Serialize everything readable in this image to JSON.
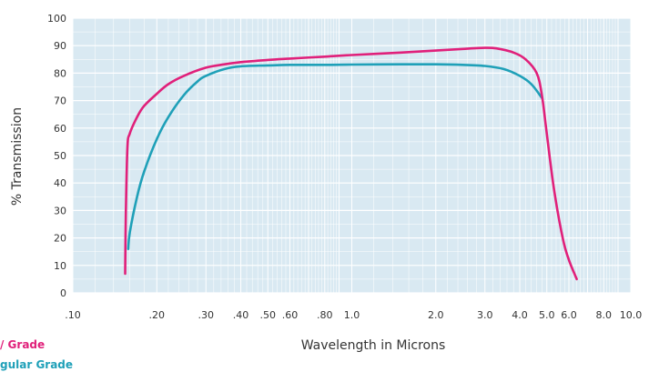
{
  "chart_data": {
    "type": "line",
    "title": "",
    "xlabel": "Wavelength in Microns",
    "ylabel": "% Transmission",
    "x_scale": "log",
    "xlim": [
      0.1,
      10.0
    ],
    "ylim": [
      0,
      100
    ],
    "grid": true,
    "plot_background": "#d9e9f2",
    "x_ticks": [
      {
        "value": 0.1,
        "label": ".10"
      },
      {
        "value": 0.2,
        "label": ".20"
      },
      {
        "value": 0.3,
        "label": ".30"
      },
      {
        "value": 0.4,
        "label": ".40"
      },
      {
        "value": 0.5,
        "label": ".50"
      },
      {
        "value": 0.6,
        "label": ".60"
      },
      {
        "value": 0.8,
        "label": ".80"
      },
      {
        "value": 1.0,
        "label": "1.0"
      },
      {
        "value": 2.0,
        "label": "2.0"
      },
      {
        "value": 3.0,
        "label": "3.0"
      },
      {
        "value": 4.0,
        "label": "4.0"
      },
      {
        "value": 5.0,
        "label": "5.0"
      },
      {
        "value": 6.0,
        "label": "6.0"
      },
      {
        "value": 8.0,
        "label": "8.0"
      },
      {
        "value": 10.0,
        "label": "10.0"
      }
    ],
    "y_ticks": [
      {
        "value": 0,
        "label": "0"
      },
      {
        "value": 10,
        "label": "10"
      },
      {
        "value": 20,
        "label": "20"
      },
      {
        "value": 30,
        "label": "30"
      },
      {
        "value": 40,
        "label": "40"
      },
      {
        "value": 50,
        "label": "50"
      },
      {
        "value": 60,
        "label": "60"
      },
      {
        "value": 70,
        "label": "70"
      },
      {
        "value": 80,
        "label": "80"
      },
      {
        "value": 90,
        "label": "90"
      },
      {
        "value": 100,
        "label": "100"
      }
    ],
    "series": [
      {
        "name": "/ Grade",
        "color": "#e0207a",
        "points": [
          [
            0.154,
            7
          ],
          [
            0.155,
            30
          ],
          [
            0.157,
            53
          ],
          [
            0.16,
            58
          ],
          [
            0.17,
            64
          ],
          [
            0.18,
            68
          ],
          [
            0.2,
            72.5
          ],
          [
            0.22,
            76
          ],
          [
            0.25,
            79
          ],
          [
            0.3,
            82
          ],
          [
            0.35,
            83.2
          ],
          [
            0.4,
            84
          ],
          [
            0.5,
            84.8
          ],
          [
            0.6,
            85.3
          ],
          [
            0.8,
            86
          ],
          [
            1.0,
            86.6
          ],
          [
            1.5,
            87.5
          ],
          [
            2.0,
            88.2
          ],
          [
            2.5,
            88.8
          ],
          [
            3.0,
            89.2
          ],
          [
            3.3,
            89
          ],
          [
            3.8,
            87.5
          ],
          [
            4.2,
            85
          ],
          [
            4.6,
            80
          ],
          [
            4.8,
            72
          ],
          [
            5.0,
            58
          ],
          [
            5.3,
            38
          ],
          [
            5.7,
            20
          ],
          [
            6.0,
            12
          ],
          [
            6.4,
            5
          ]
        ]
      },
      {
        "name": "gular Grade",
        "color": "#1fa0b8",
        "points": [
          [
            0.158,
            16
          ],
          [
            0.16,
            22
          ],
          [
            0.17,
            35
          ],
          [
            0.18,
            44
          ],
          [
            0.2,
            56
          ],
          [
            0.22,
            64
          ],
          [
            0.25,
            72
          ],
          [
            0.28,
            77
          ],
          [
            0.3,
            79
          ],
          [
            0.35,
            81.5
          ],
          [
            0.4,
            82.5
          ],
          [
            0.5,
            82.8
          ],
          [
            0.6,
            83
          ],
          [
            0.8,
            83
          ],
          [
            1.0,
            83.1
          ],
          [
            1.5,
            83.2
          ],
          [
            2.0,
            83.2
          ],
          [
            2.5,
            83
          ],
          [
            3.0,
            82.6
          ],
          [
            3.5,
            81.5
          ],
          [
            4.0,
            79
          ],
          [
            4.4,
            76
          ],
          [
            4.8,
            71
          ]
        ]
      }
    ],
    "legend": {
      "placement": "bottom-left",
      "entries": [
        {
          "label": "/ Grade",
          "color": "#e0207a"
        },
        {
          "label": "gular Grade",
          "color": "#1fa0b8"
        }
      ]
    }
  }
}
